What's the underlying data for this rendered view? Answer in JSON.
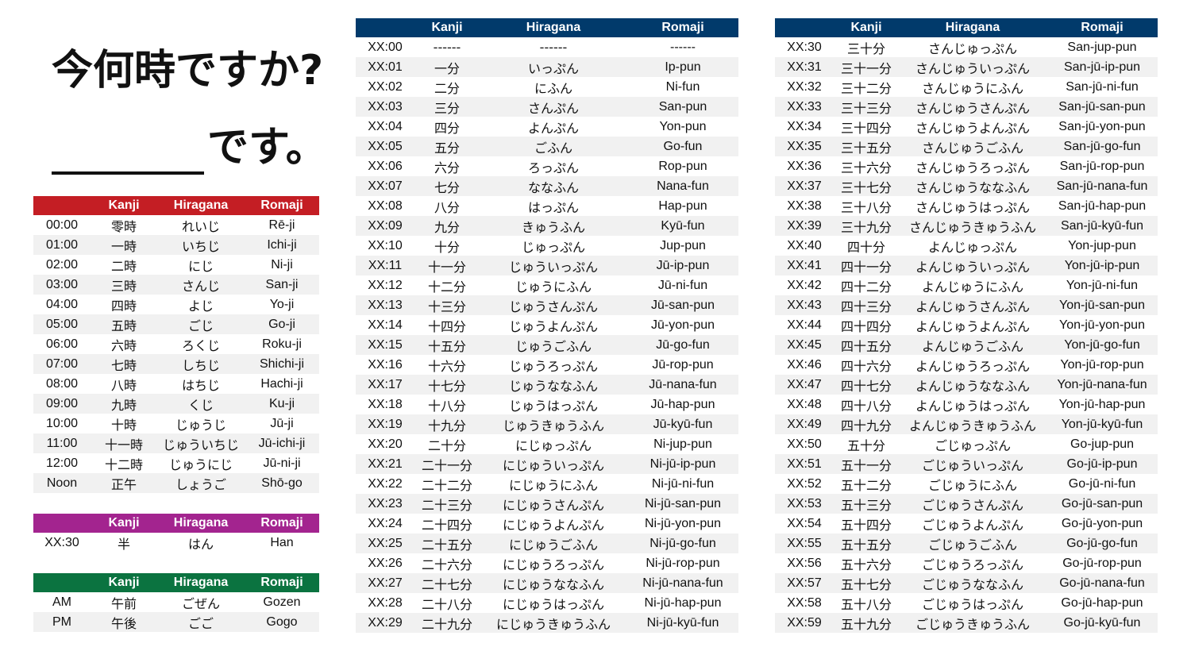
{
  "title": "今何時ですか?",
  "subtitle": "です。",
  "headers": [
    "",
    "Kanji",
    "Hiragana",
    "Romaji"
  ],
  "colors": {
    "hours": "#c41e24",
    "half": "#a3248f",
    "ampm": "#0b7340",
    "minutes": "#013a6b"
  },
  "hours": [
    [
      "00:00",
      "零時",
      "れいじ",
      "Rē-ji"
    ],
    [
      "01:00",
      "一時",
      "いちじ",
      "Ichi-ji"
    ],
    [
      "02:00",
      "二時",
      "にじ",
      "Ni-ji"
    ],
    [
      "03:00",
      "三時",
      "さんじ",
      "San-ji"
    ],
    [
      "04:00",
      "四時",
      "よじ",
      "Yo-ji"
    ],
    [
      "05:00",
      "五時",
      "ごじ",
      "Go-ji"
    ],
    [
      "06:00",
      "六時",
      "ろくじ",
      "Roku-ji"
    ],
    [
      "07:00",
      "七時",
      "しちじ",
      "Shichi-ji"
    ],
    [
      "08:00",
      "八時",
      "はちじ",
      "Hachi-ji"
    ],
    [
      "09:00",
      "九時",
      "くじ",
      "Ku-ji"
    ],
    [
      "10:00",
      "十時",
      "じゅうじ",
      "Jū-ji"
    ],
    [
      "11:00",
      "十一時",
      "じゅういちじ",
      "Jū-ichi-ji"
    ],
    [
      "12:00",
      "十二時",
      "じゅうにじ",
      "Jū-ni-ji"
    ],
    [
      "Noon",
      "正午",
      "しょうご",
      "Shō-go"
    ]
  ],
  "half": [
    [
      "XX:30",
      "半",
      "はん",
      "Han"
    ]
  ],
  "ampm": [
    [
      "AM",
      "午前",
      "ごぜん",
      "Gozen"
    ],
    [
      "PM",
      "午後",
      "ごご",
      "Gogo"
    ]
  ],
  "minutes_1": [
    [
      "XX:00",
      "------",
      "------",
      "------"
    ],
    [
      "XX:01",
      "一分",
      "いっぷん",
      "Ip-pun"
    ],
    [
      "XX:02",
      "二分",
      "にふん",
      "Ni-fun"
    ],
    [
      "XX:03",
      "三分",
      "さんぷん",
      "San-pun"
    ],
    [
      "XX:04",
      "四分",
      "よんぷん",
      "Yon-pun"
    ],
    [
      "XX:05",
      "五分",
      "ごふん",
      "Go-fun"
    ],
    [
      "XX:06",
      "六分",
      "ろっぷん",
      "Rop-pun"
    ],
    [
      "XX:07",
      "七分",
      "ななふん",
      "Nana-fun"
    ],
    [
      "XX:08",
      "八分",
      "はっぷん",
      "Hap-pun"
    ],
    [
      "XX:09",
      "九分",
      "きゅうふん",
      "Kyū-fun"
    ],
    [
      "XX:10",
      "十分",
      "じゅっぷん",
      "Jup-pun"
    ],
    [
      "XX:11",
      "十一分",
      "じゅういっぷん",
      "Jū-ip-pun"
    ],
    [
      "XX:12",
      "十二分",
      "じゅうにふん",
      "Jū-ni-fun"
    ],
    [
      "XX:13",
      "十三分",
      "じゅうさんぷん",
      "Jū-san-pun"
    ],
    [
      "XX:14",
      "十四分",
      "じゅうよんぷん",
      "Jū-yon-pun"
    ],
    [
      "XX:15",
      "十五分",
      "じゅうごふん",
      "Jū-go-fun"
    ],
    [
      "XX:16",
      "十六分",
      "じゅうろっぷん",
      "Jū-rop-pun"
    ],
    [
      "XX:17",
      "十七分",
      "じゅうななふん",
      "Jū-nana-fun"
    ],
    [
      "XX:18",
      "十八分",
      "じゅうはっぷん",
      "Jū-hap-pun"
    ],
    [
      "XX:19",
      "十九分",
      "じゅうきゅうふん",
      "Jū-kyū-fun"
    ],
    [
      "XX:20",
      "二十分",
      "にじゅっぷん",
      "Ni-jup-pun"
    ],
    [
      "XX:21",
      "二十一分",
      "にじゅういっぷん",
      "Ni-jū-ip-pun"
    ],
    [
      "XX:22",
      "二十二分",
      "にじゅうにふん",
      "Ni-jū-ni-fun"
    ],
    [
      "XX:23",
      "二十三分",
      "にじゅうさんぷん",
      "Ni-jū-san-pun"
    ],
    [
      "XX:24",
      "二十四分",
      "にじゅうよんぷん",
      "Ni-jū-yon-pun"
    ],
    [
      "XX:25",
      "二十五分",
      "にじゅうごふん",
      "Ni-jū-go-fun"
    ],
    [
      "XX:26",
      "二十六分",
      "にじゅうろっぷん",
      "Ni-jū-rop-pun"
    ],
    [
      "XX:27",
      "二十七分",
      "にじゅうななふん",
      "Ni-jū-nana-fun"
    ],
    [
      "XX:28",
      "二十八分",
      "にじゅうはっぷん",
      "Ni-jū-hap-pun"
    ],
    [
      "XX:29",
      "二十九分",
      "にじゅうきゅうふん",
      "Ni-jū-kyū-fun"
    ]
  ],
  "minutes_2": [
    [
      "XX:30",
      "三十分",
      "さんじゅっぷん",
      "San-jup-pun"
    ],
    [
      "XX:31",
      "三十一分",
      "さんじゅういっぷん",
      "San-jū-ip-pun"
    ],
    [
      "XX:32",
      "三十二分",
      "さんじゅうにふん",
      "San-jū-ni-fun"
    ],
    [
      "XX:33",
      "三十三分",
      "さんじゅうさんぷん",
      "San-jū-san-pun"
    ],
    [
      "XX:34",
      "三十四分",
      "さんじゅうよんぷん",
      "San-jū-yon-pun"
    ],
    [
      "XX:35",
      "三十五分",
      "さんじゅうごふん",
      "San-jū-go-fun"
    ],
    [
      "XX:36",
      "三十六分",
      "さんじゅうろっぷん",
      "San-jū-rop-pun"
    ],
    [
      "XX:37",
      "三十七分",
      "さんじゅうななふん",
      "San-jū-nana-fun"
    ],
    [
      "XX:38",
      "三十八分",
      "さんじゅうはっぷん",
      "San-jū-hap-pun"
    ],
    [
      "XX:39",
      "三十九分",
      "さんじゅうきゅうふん",
      "San-jū-kyū-fun"
    ],
    [
      "XX:40",
      "四十分",
      "よんじゅっぷん",
      "Yon-jup-pun"
    ],
    [
      "XX:41",
      "四十一分",
      "よんじゅういっぷん",
      "Yon-jū-ip-pun"
    ],
    [
      "XX:42",
      "四十二分",
      "よんじゅうにふん",
      "Yon-jū-ni-fun"
    ],
    [
      "XX:43",
      "四十三分",
      "よんじゅうさんぷん",
      "Yon-jū-san-pun"
    ],
    [
      "XX:44",
      "四十四分",
      "よんじゅうよんぷん",
      "Yon-jū-yon-pun"
    ],
    [
      "XX:45",
      "四十五分",
      "よんじゅうごふん",
      "Yon-jū-go-fun"
    ],
    [
      "XX:46",
      "四十六分",
      "よんじゅうろっぷん",
      "Yon-jū-rop-pun"
    ],
    [
      "XX:47",
      "四十七分",
      "よんじゅうななふん",
      "Yon-jū-nana-fun"
    ],
    [
      "XX:48",
      "四十八分",
      "よんじゅうはっぷん",
      "Yon-jū-hap-pun"
    ],
    [
      "XX:49",
      "四十九分",
      "よんじゅうきゅうふん",
      "Yon-jū-kyū-fun"
    ],
    [
      "XX:50",
      "五十分",
      "ごじゅっぷん",
      "Go-jup-pun"
    ],
    [
      "XX:51",
      "五十一分",
      "ごじゅういっぷん",
      "Go-jū-ip-pun"
    ],
    [
      "XX:52",
      "五十二分",
      "ごじゅうにふん",
      "Go-jū-ni-fun"
    ],
    [
      "XX:53",
      "五十三分",
      "ごじゅうさんぷん",
      "Go-jū-san-pun"
    ],
    [
      "XX:54",
      "五十四分",
      "ごじゅうよんぷん",
      "Go-jū-yon-pun"
    ],
    [
      "XX:55",
      "五十五分",
      "ごじゅうごふん",
      "Go-jū-go-fun"
    ],
    [
      "XX:56",
      "五十六分",
      "ごじゅうろっぷん",
      "Go-jū-rop-pun"
    ],
    [
      "XX:57",
      "五十七分",
      "ごじゅうななふん",
      "Go-jū-nana-fun"
    ],
    [
      "XX:58",
      "五十八分",
      "ごじゅうはっぷん",
      "Go-jū-hap-pun"
    ],
    [
      "XX:59",
      "五十九分",
      "ごじゅうきゅうふん",
      "Go-jū-kyū-fun"
    ]
  ]
}
